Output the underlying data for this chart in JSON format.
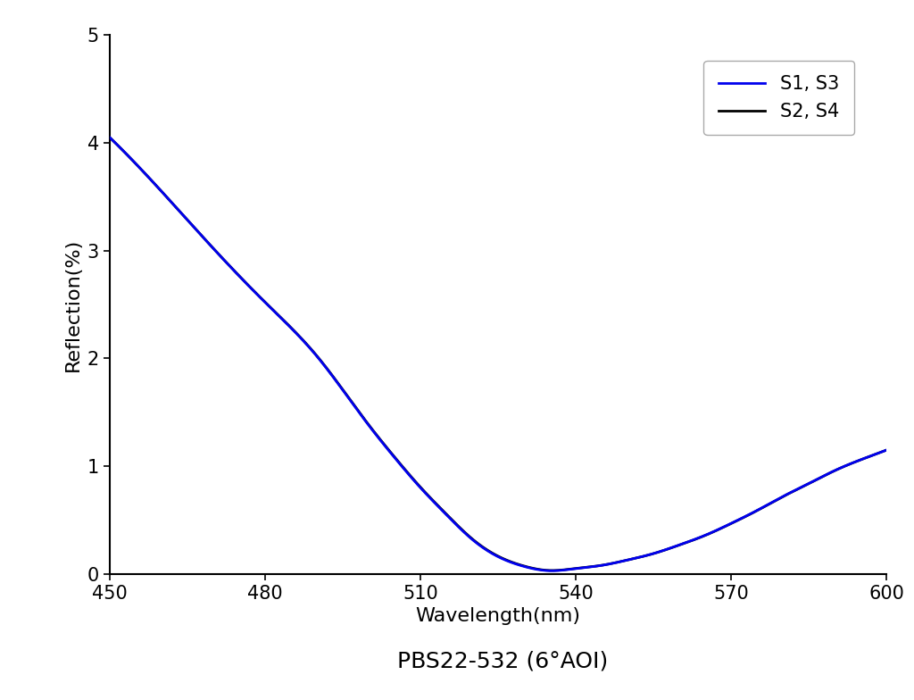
{
  "title": "PBS22-532 (6°AOI)",
  "xlabel": "Wavelength(nm)",
  "ylabel": "Reflection(%)",
  "xlim": [
    450,
    600
  ],
  "ylim": [
    0,
    5
  ],
  "xticks": [
    450,
    480,
    510,
    540,
    570,
    600
  ],
  "yticks": [
    0,
    1,
    2,
    3,
    4,
    5
  ],
  "line1_color": "#0000EE",
  "line2_color": "#000000",
  "line1_label": "S1, S3",
  "line2_label": "S2, S4",
  "line_width": 2.0,
  "title_fontsize": 18,
  "label_fontsize": 16,
  "tick_fontsize": 15,
  "legend_fontsize": 15,
  "background_color": "#ffffff",
  "x_curve": [
    450,
    460,
    470,
    480,
    490,
    500,
    505,
    510,
    515,
    520,
    525,
    530,
    535,
    540,
    545,
    550,
    555,
    560,
    565,
    570,
    575,
    580,
    585,
    590,
    595,
    600
  ],
  "y1_curve": [
    4.05,
    3.55,
    3.02,
    2.52,
    2.02,
    1.38,
    1.08,
    0.8,
    0.55,
    0.32,
    0.16,
    0.07,
    0.03,
    0.05,
    0.08,
    0.13,
    0.19,
    0.27,
    0.36,
    0.47,
    0.59,
    0.72,
    0.84,
    0.96,
    1.06,
    1.15
  ],
  "y2_curve": [
    4.05,
    3.55,
    3.02,
    2.52,
    2.02,
    1.38,
    1.08,
    0.8,
    0.55,
    0.32,
    0.16,
    0.07,
    0.03,
    0.05,
    0.08,
    0.13,
    0.19,
    0.27,
    0.36,
    0.47,
    0.59,
    0.72,
    0.84,
    0.96,
    1.06,
    1.15
  ]
}
